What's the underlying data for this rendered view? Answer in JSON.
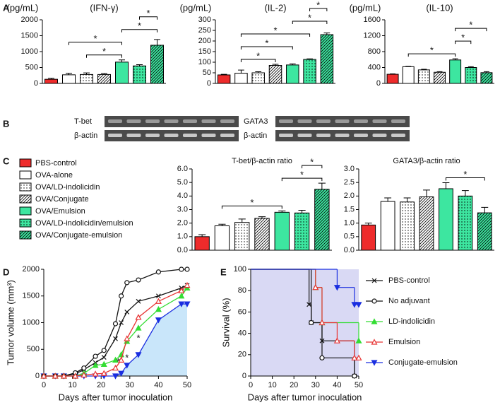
{
  "panels": [
    "A",
    "B",
    "C",
    "D",
    "E"
  ],
  "bar_styles": [
    {
      "name": "PBS-control",
      "color": "#ee2b2b"
    },
    {
      "name": "OVA-alone",
      "color": "#ffffff"
    },
    {
      "name": "OVA/LD-indolicidin",
      "color": "#ffffff",
      "pattern": "dots"
    },
    {
      "name": "OVA/Conjugate",
      "color": "#ffffff",
      "pattern": "hatch"
    },
    {
      "name": "OVA/Emulsion",
      "color": "#3de6a0"
    },
    {
      "name": "OVA/LD-indolicidin/emulsion",
      "color": "#3de6a0",
      "pattern": "dots"
    },
    {
      "name": "OVA/Conjugate-emulsion",
      "color": "#3de6a0",
      "pattern": "hatch"
    }
  ],
  "blots": {
    "left": [
      "T-bet",
      "β-actin"
    ],
    "right": [
      "GATA3",
      "β-actin"
    ]
  },
  "chart_data": [
    {
      "type": "bar",
      "title": "(IFN-γ)",
      "ylabel": "(pg/mL)",
      "values": [
        130,
        270,
        280,
        280,
        670,
        550,
        1200
      ],
      "errors": [
        30,
        50,
        50,
        30,
        70,
        40,
        180
      ],
      "ylim": [
        0,
        2000
      ],
      "yticks": [
        0,
        500,
        1000,
        1500,
        2000
      ],
      "significance": [
        {
          "pair": [
            2,
            4
          ],
          "label": "*"
        },
        {
          "pair": [
            1,
            4
          ],
          "label": "*"
        },
        {
          "pair": [
            4,
            6
          ],
          "label": "*"
        },
        {
          "pair": [
            5,
            6
          ],
          "label": "*"
        }
      ]
    },
    {
      "type": "bar",
      "title": "(IL-2)",
      "ylabel": "(pg/mL)",
      "values": [
        40,
        48,
        50,
        85,
        87,
        113,
        230
      ],
      "errors": [
        3,
        15,
        5,
        5,
        5,
        3,
        8
      ],
      "ylim": [
        0,
        300
      ],
      "yticks": [
        0,
        50,
        100,
        150,
        200,
        250,
        300
      ],
      "significance": [
        {
          "pair": [
            1,
            3
          ],
          "label": "*"
        },
        {
          "pair": [
            1,
            4
          ],
          "label": "*"
        },
        {
          "pair": [
            1,
            5
          ],
          "label": "*"
        },
        {
          "pair": [
            4,
            6
          ],
          "label": "*"
        },
        {
          "pair": [
            5,
            6
          ],
          "label": "*"
        }
      ]
    },
    {
      "type": "bar",
      "title": "(IL-10)",
      "ylabel": "(pg/mL)",
      "values": [
        230,
        420,
        340,
        280,
        590,
        400,
        270
      ],
      "errors": [
        10,
        10,
        15,
        15,
        30,
        20,
        25
      ],
      "ylim": [
        0,
        1600
      ],
      "yticks": [
        0,
        400,
        800,
        1200,
        1600
      ],
      "significance": [
        {
          "pair": [
            1,
            4
          ],
          "label": "*"
        },
        {
          "pair": [
            4,
            5
          ],
          "label": "*"
        },
        {
          "pair": [
            4,
            6
          ],
          "label": "*"
        }
      ]
    },
    {
      "type": "bar",
      "title": "T-bet/β-actin ratio",
      "values": [
        1.0,
        1.8,
        2.05,
        2.35,
        2.8,
        2.75,
        4.5
      ],
      "errors": [
        0.15,
        0.12,
        0.25,
        0.12,
        0.1,
        0.2,
        0.45
      ],
      "ylim": [
        0,
        6
      ],
      "yticks": [
        {
          "value": 0,
          "label": "0.0"
        },
        {
          "value": 1,
          "label": "1.0"
        },
        {
          "value": 2,
          "label": "2.0"
        },
        {
          "value": 3,
          "label": "3.0"
        },
        {
          "value": 4,
          "label": "4.0"
        },
        {
          "value": 5,
          "label": "5.0"
        },
        {
          "value": 6,
          "label": "6.0"
        }
      ],
      "significance": [
        {
          "pair": [
            1,
            4
          ],
          "label": "*"
        },
        {
          "pair": [
            4,
            6
          ],
          "label": "*"
        },
        {
          "pair": [
            5,
            6
          ],
          "label": "*"
        }
      ]
    },
    {
      "type": "bar",
      "title": "GATA3/β-actin ratio",
      "values": [
        0.93,
        1.8,
        1.78,
        1.97,
        2.27,
        2.0,
        1.38
      ],
      "errors": [
        0.07,
        0.13,
        0.15,
        0.25,
        0.22,
        0.2,
        0.2
      ],
      "ylim": [
        0,
        3
      ],
      "yticks": [
        {
          "value": 0,
          "label": "0.0"
        },
        0.5,
        {
          "value": 1,
          "label": "1.0"
        },
        1.5,
        {
          "value": 2,
          "label": "2.0"
        },
        2.5,
        {
          "value": 3,
          "label": "3.0"
        }
      ],
      "significance": [
        {
          "pair": [
            4,
            6
          ],
          "label": "*"
        }
      ]
    },
    {
      "type": "line",
      "ylabel": "Tumor volume (mm³)",
      "xlabel": "Days after tumor inoculation",
      "x": [
        0,
        4,
        7,
        11,
        14,
        18,
        21,
        25,
        27,
        29,
        33,
        40,
        48,
        50
      ],
      "xlim": [
        0,
        50
      ],
      "xticks": [
        0,
        10,
        20,
        30,
        40,
        50
      ],
      "ylim": [
        0,
        2000
      ],
      "yticks": [
        0,
        500,
        1000,
        1500,
        2000
      ],
      "series": [
        {
          "color": "#1a2ee0",
          "marker": "v",
          "fill": "#c9e6fa",
          "values": [
            0,
            0,
            0,
            0,
            0,
            0,
            0,
            0,
            50,
            200,
            400,
            1050,
            1350,
            1350
          ]
        },
        {
          "color": "#111111",
          "marker": "x",
          "values": [
            0,
            0,
            0,
            40,
            120,
            250,
            350,
            700,
            1000,
            1200,
            1400,
            1500,
            1650,
            1700
          ]
        },
        {
          "color": "#111111",
          "marker": "o",
          "open": true,
          "values": [
            0,
            0,
            0,
            60,
            150,
            370,
            480,
            980,
            1500,
            1750,
            1800,
            1950,
            2000,
            2000
          ]
        },
        {
          "color": "#33dd33",
          "marker": "^",
          "values": [
            0,
            0,
            0,
            0,
            50,
            200,
            220,
            300,
            400,
            650,
            900,
            1250,
            1500,
            1650
          ]
        },
        {
          "color": "#e83333",
          "marker": "^",
          "open": true,
          "values": [
            0,
            0,
            0,
            0,
            20,
            40,
            50,
            150,
            300,
            700,
            1100,
            1400,
            1600,
            1700
          ]
        }
      ],
      "annotations": [
        {
          "text": "*",
          "x": 26,
          "y": 260
        },
        {
          "text": "*",
          "x": 29,
          "y": 330
        },
        {
          "text": "*",
          "x": 33,
          "y": 700
        }
      ]
    },
    {
      "type": "step",
      "ylabel": "Survival (%)",
      "xlabel": "Days after tumor inoculation",
      "xlim": [
        0,
        50
      ],
      "xticks": [
        0,
        10,
        20,
        30,
        40,
        50
      ],
      "ylim": [
        0,
        100
      ],
      "yticks": [
        0,
        20,
        40,
        60,
        80,
        100
      ],
      "plot_background": "#d9d9f4",
      "series": [
        {
          "name": "PBS-control",
          "color": "#111111",
          "marker": "x",
          "x": [
            0,
            27,
            28,
            33,
            48
          ],
          "values": [
            100,
            67,
            50,
            33,
            0
          ]
        },
        {
          "name": "No adjuvant",
          "color": "#111111",
          "marker": "o",
          "open": true,
          "x": [
            0,
            28,
            33,
            48
          ],
          "values": [
            100,
            50,
            17,
            0
          ]
        },
        {
          "name": "LD-indolicidin",
          "color": "#33dd33",
          "marker": "^",
          "x": [
            0,
            30,
            33,
            50
          ],
          "values": [
            100,
            83,
            50,
            33
          ]
        },
        {
          "name": "Emulsion",
          "color": "#e83333",
          "marker": "^",
          "open": true,
          "x": [
            0,
            30,
            33,
            40,
            48,
            50
          ],
          "values": [
            100,
            83,
            50,
            33,
            17,
            17
          ]
        },
        {
          "name": "Conjugate-emulsion",
          "color": "#1a2ee0",
          "marker": "v",
          "x": [
            0,
            40,
            48,
            50
          ],
          "values": [
            100,
            83,
            67,
            67
          ]
        }
      ]
    }
  ]
}
